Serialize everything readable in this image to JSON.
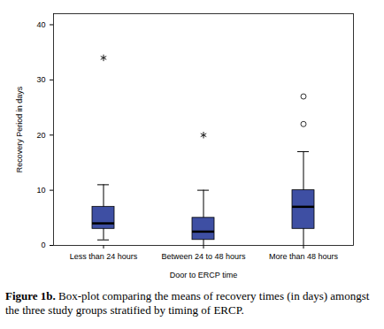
{
  "chart_data": {
    "type": "boxplot",
    "xlabel": "Door to ERCP time",
    "ylabel": "Recovery Period in days",
    "caption": {
      "label": "Figure 1b.",
      "text": "Box-plot comparing the means of recovery times  (in days) amongst the three study groups stratified by timing of ERCP."
    },
    "categories": [
      "Less than 24 hours",
      "Between 24 to 48 hours",
      "More than 48 hours"
    ],
    "whisker_low": [
      1,
      0,
      0
    ],
    "q1": [
      3,
      1,
      3
    ],
    "median": [
      4,
      2.5,
      7
    ],
    "q3": [
      7,
      5,
      10
    ],
    "whisker_high": [
      11,
      10,
      17
    ],
    "outliers": [
      [],
      [],
      [
        22,
        27
      ]
    ],
    "extremes": [
      [
        34
      ],
      [
        20
      ],
      []
    ],
    "color": "#3e4fa3",
    "ylim": [
      0,
      42
    ],
    "yticks": [
      0,
      10,
      20,
      30,
      40
    ]
  }
}
